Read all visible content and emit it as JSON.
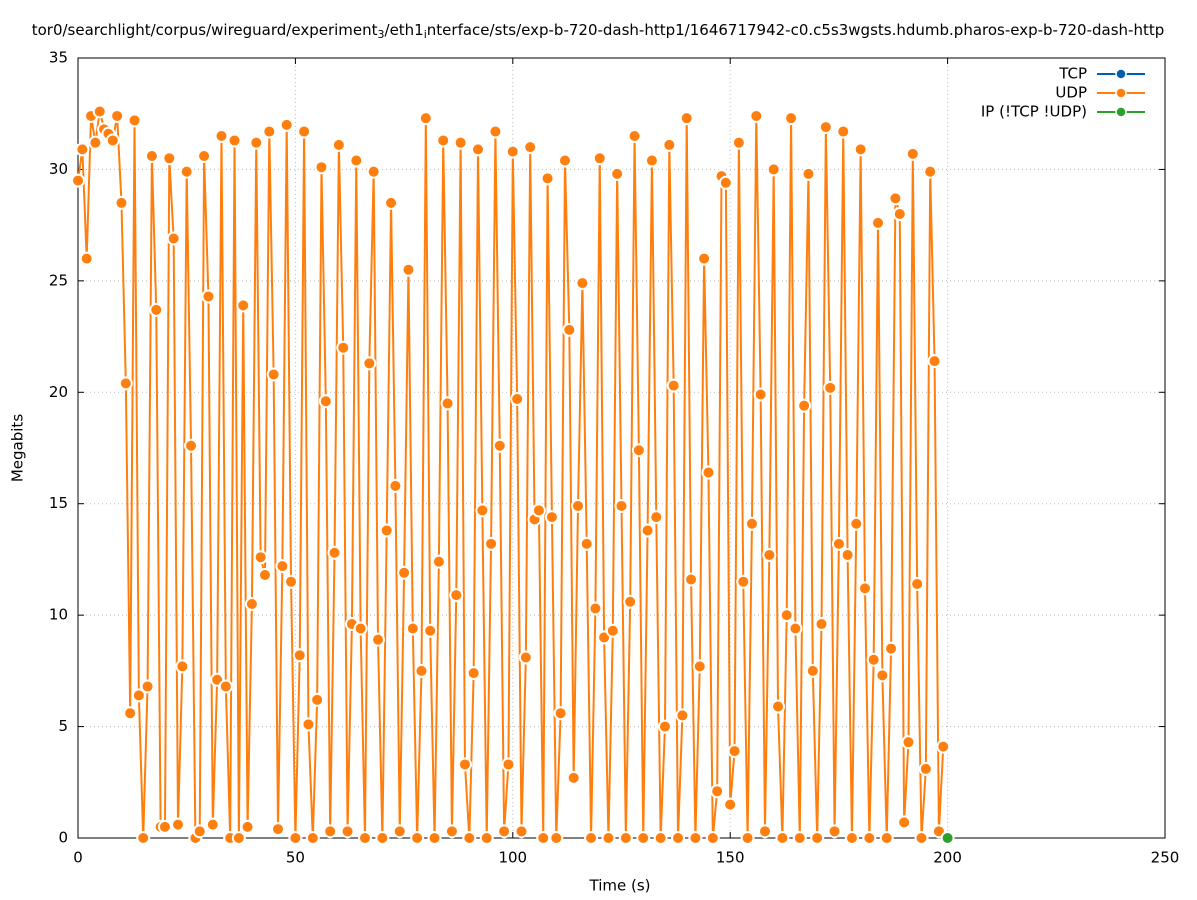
{
  "chart_data": {
    "type": "line",
    "title": [
      "tor0/searchlight/corpus/wireguard/experiment",
      "3",
      "/eth1",
      "i",
      "nterface/sts/exp-b-720-dash-http1/1646717942-c0.c5s3wgsts.hdumb.pharos-exp-b-720-dash-http"
    ],
    "xlabel": "Time (s)",
    "ylabel": "Megabits",
    "xlim": [
      0,
      250
    ],
    "xticks": [
      0,
      50,
      100,
      150,
      200,
      250
    ],
    "ylim": [
      0,
      35
    ],
    "yticks": [
      0,
      5,
      10,
      15,
      20,
      25,
      30,
      35
    ],
    "grid": true,
    "legend": "top-right",
    "series": [
      {
        "name": "TCP",
        "color": "#0060ad",
        "x": [],
        "values": []
      },
      {
        "name": "UDP",
        "color": "#ff7f0e",
        "x": [
          0,
          1,
          2,
          3,
          4,
          5,
          6,
          7,
          8,
          9,
          10,
          11,
          12,
          13,
          14,
          15,
          16,
          17,
          18,
          19,
          20,
          21,
          22,
          23,
          24,
          25,
          26,
          27,
          28,
          29,
          30,
          31,
          32,
          33,
          34,
          35,
          36,
          37,
          38,
          39,
          40,
          41,
          42,
          43,
          44,
          45,
          46,
          47,
          48,
          49,
          50,
          51,
          52,
          53,
          54,
          55,
          56,
          57,
          58,
          59,
          60,
          61,
          62,
          63,
          64,
          65,
          66,
          67,
          68,
          69,
          70,
          71,
          72,
          73,
          74,
          75,
          76,
          77,
          78,
          79,
          80,
          81,
          82,
          83,
          84,
          85,
          86,
          87,
          88,
          89,
          90,
          91,
          92,
          93,
          94,
          95,
          96,
          97,
          98,
          99,
          100,
          101,
          102,
          103,
          104,
          105,
          106,
          107,
          108,
          109,
          110,
          111,
          112,
          113,
          114,
          115,
          116,
          117,
          118,
          119,
          120,
          121,
          122,
          123,
          124,
          125,
          126,
          127,
          128,
          129,
          130,
          131,
          132,
          133,
          134,
          135,
          136,
          137,
          138,
          139,
          140,
          141,
          142,
          143,
          144,
          145,
          146,
          147,
          148,
          149,
          150,
          151,
          152,
          153,
          154,
          155,
          156,
          157,
          158,
          159,
          160,
          161,
          162,
          163,
          164,
          165,
          166,
          167,
          168,
          169,
          170,
          171,
          172,
          173,
          174,
          175,
          176,
          177,
          178,
          179,
          180,
          181,
          182,
          183,
          184,
          185,
          186,
          187,
          188,
          189,
          190,
          191,
          192,
          193,
          194,
          195,
          196,
          197,
          198,
          199
        ],
        "values": [
          29.5,
          30.9,
          26,
          32.4,
          31.2,
          32.6,
          31.8,
          31.6,
          31.3,
          32.4,
          28.5,
          20.4,
          5.6,
          32.2,
          6.4,
          0,
          6.8,
          30.6,
          23.7,
          0.5,
          0.5,
          30.5,
          26.9,
          0.6,
          7.7,
          29.9,
          17.6,
          0,
          0.3,
          30.6,
          24.3,
          0.6,
          7.1,
          31.5,
          6.8,
          0,
          31.3,
          0,
          23.9,
          0.5,
          10.5,
          31.2,
          12.6,
          11.8,
          31.7,
          20.8,
          0.4,
          12.2,
          32,
          11.5,
          0,
          8.2,
          31.7,
          5.1,
          0,
          6.2,
          30.1,
          19.6,
          0.3,
          12.8,
          31.1,
          22,
          0.3,
          9.6,
          30.4,
          9.4,
          0,
          21.3,
          29.9,
          8.9,
          0,
          13.8,
          28.5,
          15.8,
          0.3,
          11.9,
          25.5,
          9.4,
          0,
          7.5,
          32.3,
          9.3,
          0,
          12.4,
          31.3,
          19.5,
          0.3,
          10.9,
          31.2,
          3.3,
          0,
          7.4,
          30.9,
          14.7,
          0,
          13.2,
          31.7,
          17.6,
          0.3,
          3.3,
          30.8,
          19.7,
          0.3,
          8.1,
          31,
          14.3,
          14.7,
          0,
          29.6,
          14.4,
          0,
          5.6,
          30.4,
          22.8,
          2.7,
          14.9,
          24.9,
          13.2,
          0,
          10.3,
          30.5,
          9,
          0,
          9.3,
          29.8,
          14.9,
          0,
          10.6,
          31.5,
          17.4,
          0,
          13.8,
          30.4,
          14.4,
          0,
          5,
          31.1,
          20.3,
          0,
          5.5,
          32.3,
          11.6,
          0,
          7.7,
          26,
          16.4,
          0,
          2.1,
          29.7,
          29.4,
          1.5,
          3.9,
          31.2,
          11.5,
          0,
          14.1,
          32.4,
          19.9,
          0.3,
          12.7,
          30,
          5.9,
          0,
          10,
          32.3,
          9.4,
          0,
          19.4,
          29.8,
          7.5,
          0,
          9.6,
          31.9,
          20.2,
          0.3,
          13.2,
          31.7,
          12.7,
          0,
          14.1,
          30.9,
          11.2,
          0,
          8,
          27.6,
          7.3,
          0,
          8.5,
          28.7,
          28,
          0.7,
          4.3,
          30.7,
          11.4,
          0,
          3.1,
          29.9,
          21.4,
          0.3,
          4.1
        ]
      },
      {
        "name": "IP (!TCP  !UDP)",
        "color": "#2ca02c",
        "x": [
          200
        ],
        "values": [
          0
        ]
      }
    ]
  }
}
